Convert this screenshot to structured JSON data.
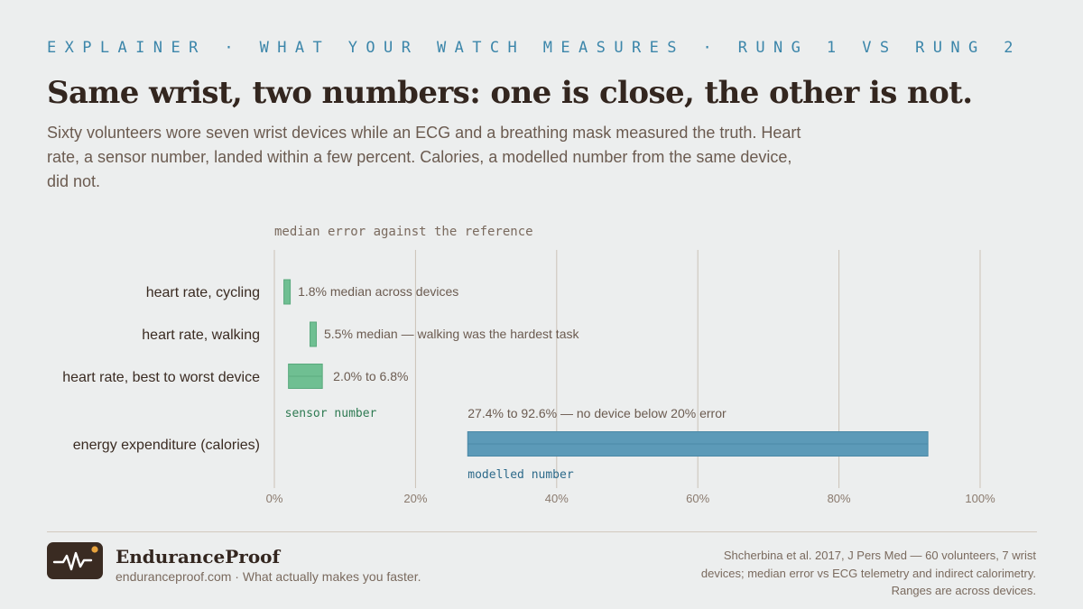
{
  "header": {
    "eyebrow": "EXPLAINER · WHAT YOUR WATCH MEASURES · RUNG 1 VS RUNG 2",
    "title": "Same wrist, two numbers: one is close, the other is not.",
    "subtitle": "Sixty volunteers wore seven wrist devices while an ECG and a breathing mask measured the truth. Heart rate, a sensor number, landed within a few percent. Calories, a modelled number from the same device, did not."
  },
  "chart_data": {
    "type": "bar",
    "orientation": "horizontal",
    "title": "median error against the reference",
    "xlim": [
      0,
      100
    ],
    "x_ticks": [
      "0%",
      "20%",
      "40%",
      "60%",
      "80%",
      "100%"
    ],
    "x_tick_values": [
      0,
      20,
      40,
      60,
      80,
      100
    ],
    "grid": true,
    "rows": [
      {
        "category": "heart rate, cycling",
        "kind": "point",
        "value": 1.8,
        "annotation": "1.8% median across devices",
        "group": "sensor"
      },
      {
        "category": "heart rate, walking",
        "kind": "point",
        "value": 5.5,
        "annotation": "5.5% median — walking was the hardest task",
        "group": "sensor"
      },
      {
        "category": "heart rate, best to worst device",
        "kind": "range",
        "low": 2.0,
        "high": 6.8,
        "annotation": "2.0% to 6.8%",
        "group": "sensor"
      },
      {
        "category": "energy expenditure (calories)",
        "kind": "range",
        "low": 27.4,
        "high": 92.6,
        "annotation": "27.4% to 92.6% — no device below 20% error",
        "group": "modelled"
      }
    ],
    "group_labels": {
      "sensor": "sensor number",
      "modelled": "modelled number"
    },
    "colors": {
      "sensor": "#6fbf92",
      "modelled": "#5c9ab8",
      "sensor_label": "#2e7a52",
      "modelled_label": "#2d6a8a"
    }
  },
  "footer": {
    "brand_name": "EnduranceProof",
    "brand_tagline": "enduranceproof.com · What actually makes you faster.",
    "source": "Shcherbina et al. 2017, J Pers Med — 60 volunteers, 7 wrist devices; median error vs ECG telemetry and indirect calorimetry. Ranges are across devices.",
    "logo_icon": "heartbeat-pulse-icon",
    "logo_accent": "#e8a33d"
  }
}
